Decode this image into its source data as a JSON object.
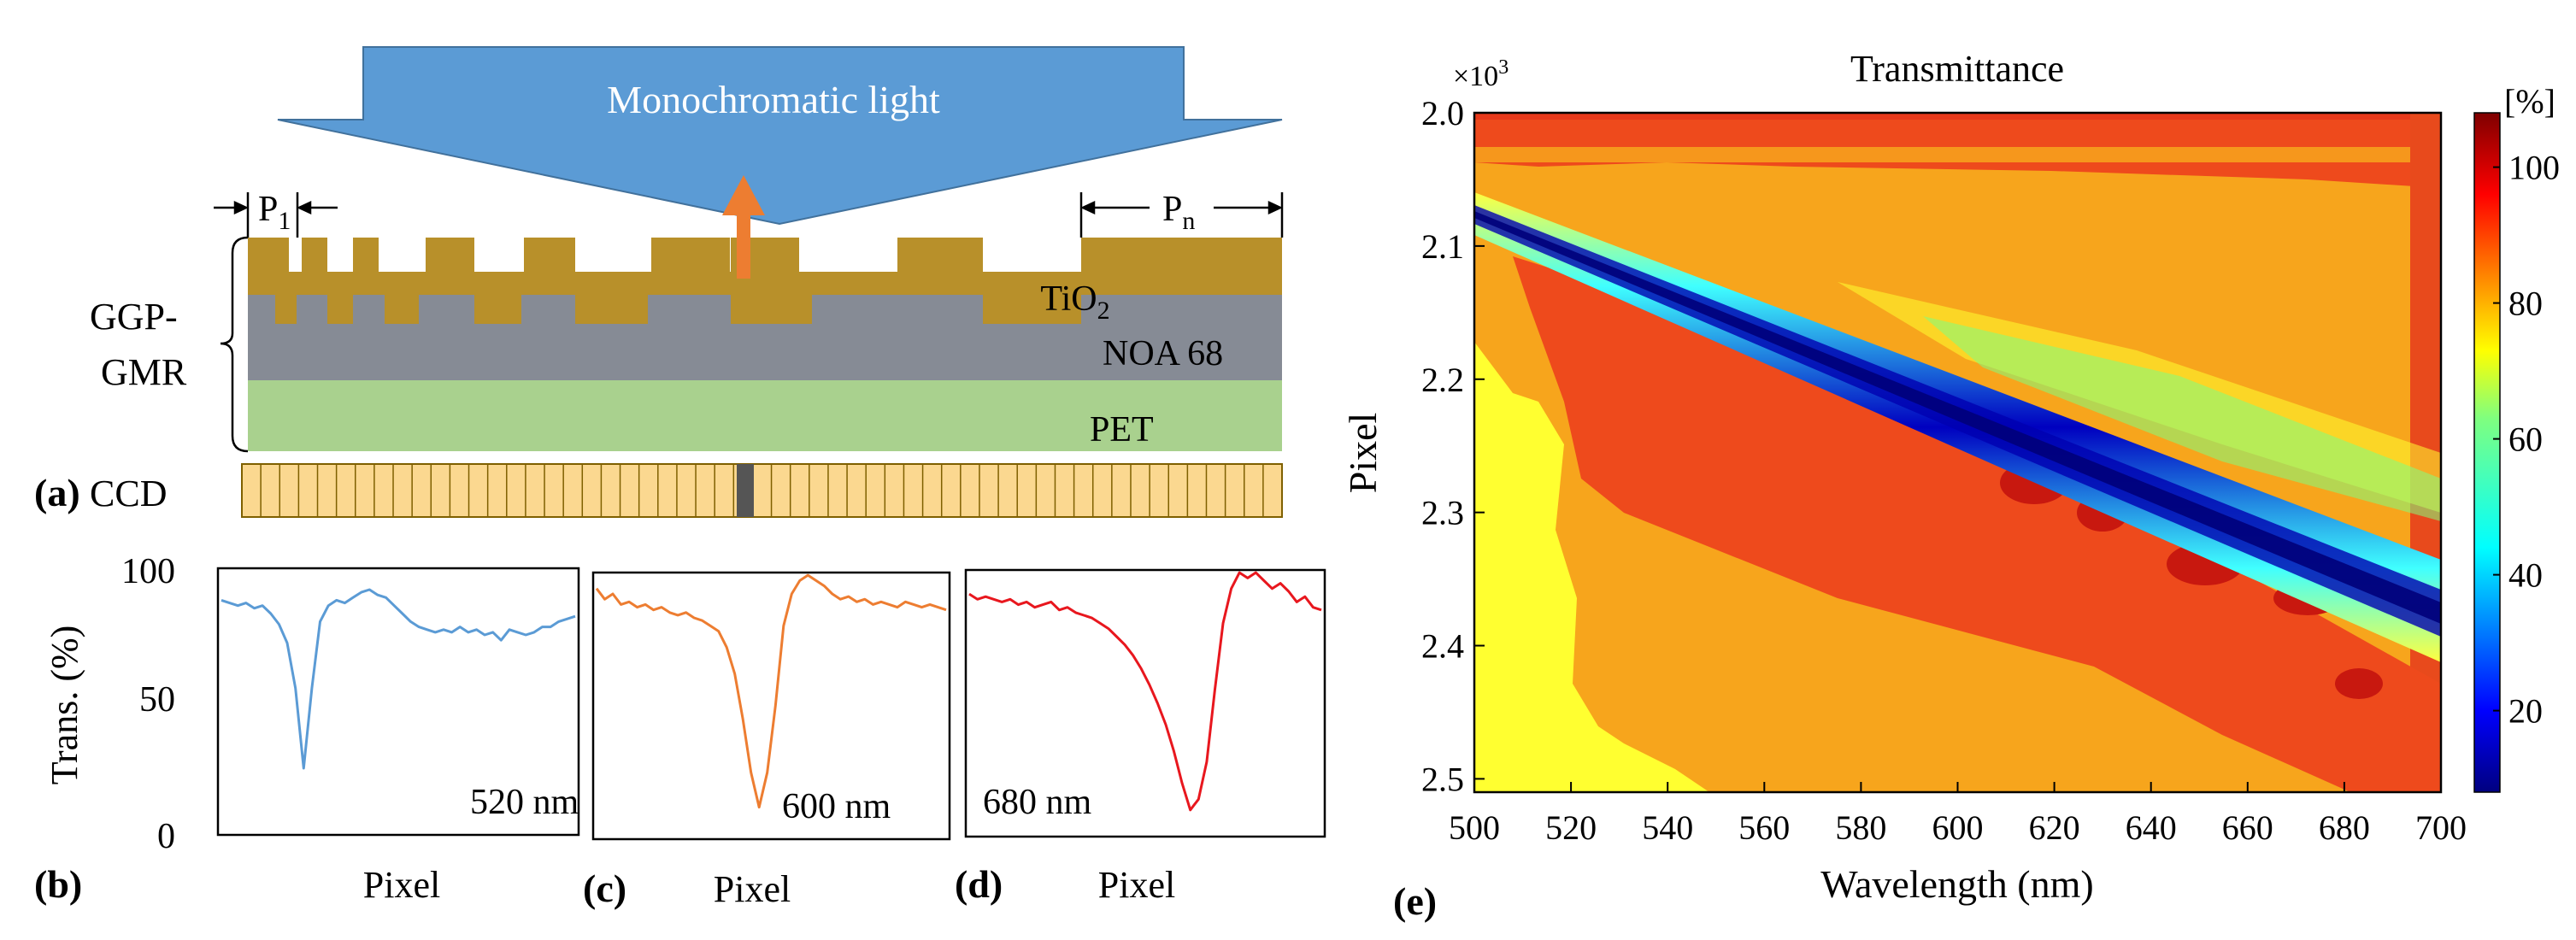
{
  "panel_a": {
    "label": "(a)",
    "arrow_text": "Monochromatic light",
    "p1_label": "P",
    "p1_sub": "1",
    "pn_label": "P",
    "pn_sub": "n",
    "gmr_label_line1": "GGP-",
    "gmr_label_line2": "GMR",
    "tio2_label": "TiO",
    "tio2_sub": "2",
    "noa_label": "NOA 68",
    "pet_label": "PET",
    "ccd_label": "CCD",
    "colors": {
      "arrow": "#5b9bd5",
      "tio2": "#b8902a",
      "noa": "#868b95",
      "pet": "#a9d18e",
      "ccd": "#fbd890",
      "emit": "#ed7d31"
    }
  },
  "spectra": {
    "ylabel": "Trans. (%)",
    "yticks": [
      "100",
      "50",
      "0"
    ],
    "panels": [
      {
        "label": "(b)",
        "wavelength": "520 nm",
        "xlabel": "Pixel",
        "color": "#5b9bd5"
      },
      {
        "label": "(c)",
        "wavelength": "600 nm",
        "xlabel": "Pixel",
        "color": "#ed7d31"
      },
      {
        "label": "(d)",
        "wavelength": "680 nm",
        "xlabel": "Pixel",
        "color": "#e8171e"
      }
    ]
  },
  "chart_data": [
    {
      "type": "line",
      "title": "",
      "xlabel": "Pixel",
      "ylabel": "Trans. (%)",
      "ylim": [
        0,
        100
      ],
      "series": [
        {
          "name": "520 nm",
          "values": [
            88,
            87,
            86,
            87,
            85,
            86,
            83,
            79,
            72,
            55,
            25,
            55,
            80,
            86,
            88,
            87,
            89,
            91,
            92,
            90,
            89,
            86,
            83,
            80,
            78,
            77,
            76,
            77,
            76,
            78,
            76,
            77,
            75,
            76,
            73,
            77,
            76,
            75,
            76,
            78,
            78,
            80,
            81,
            82
          ]
        }
      ]
    },
    {
      "type": "line",
      "title": "",
      "xlabel": "Pixel",
      "ylabel": "Trans. (%)",
      "ylim": [
        0,
        100
      ],
      "series": [
        {
          "name": "600 nm",
          "values": [
            94,
            90,
            92,
            88,
            89,
            87,
            88,
            86,
            87,
            85,
            84,
            85,
            83,
            82,
            80,
            78,
            72,
            62,
            45,
            25,
            12,
            25,
            50,
            80,
            92,
            97,
            99,
            97,
            95,
            92,
            90,
            91,
            89,
            90,
            88,
            89,
            88,
            87,
            89,
            88,
            87,
            88,
            87,
            86
          ]
        }
      ]
    },
    {
      "type": "line",
      "title": "",
      "xlabel": "Pixel",
      "ylabel": "Trans. (%)",
      "ylim": [
        0,
        100
      ],
      "series": [
        {
          "name": "680 nm",
          "values": [
            91,
            89,
            90,
            89,
            88,
            89,
            87,
            88,
            86,
            87,
            88,
            85,
            86,
            84,
            83,
            82,
            80,
            78,
            75,
            72,
            68,
            63,
            57,
            50,
            42,
            32,
            20,
            10,
            14,
            28,
            55,
            80,
            93,
            99,
            97,
            99,
            96,
            93,
            95,
            92,
            88,
            90,
            86,
            85
          ]
        }
      ]
    },
    {
      "type": "heatmap",
      "title": "Transmittance",
      "xlabel": "Wavelength (nm)",
      "ylabel": "Pixel",
      "y_exponent_label": "×10",
      "y_exponent": "3",
      "colorbar_unit": "[%]",
      "xlim": [
        500,
        700
      ],
      "ylim": [
        2.0,
        2.51
      ],
      "xticks": [
        "500",
        "520",
        "540",
        "560",
        "580",
        "600",
        "620",
        "640",
        "660",
        "680",
        "700"
      ],
      "yticks": [
        "2.0",
        "2.1",
        "2.2",
        "2.3",
        "2.4",
        "2.5"
      ],
      "colorbar_ticks": [
        "100",
        "80",
        "60",
        "40",
        "20"
      ],
      "colorbar_range": [
        8,
        108
      ],
      "resonance_line": {
        "start": {
          "wavelength": 500,
          "pixel": 2.065
        },
        "end": {
          "wavelength": 700,
          "pixel": 2.355
        }
      },
      "background_transmittance": 88,
      "resonance_minimum": 8
    }
  ],
  "panel_e_label": "(e)"
}
